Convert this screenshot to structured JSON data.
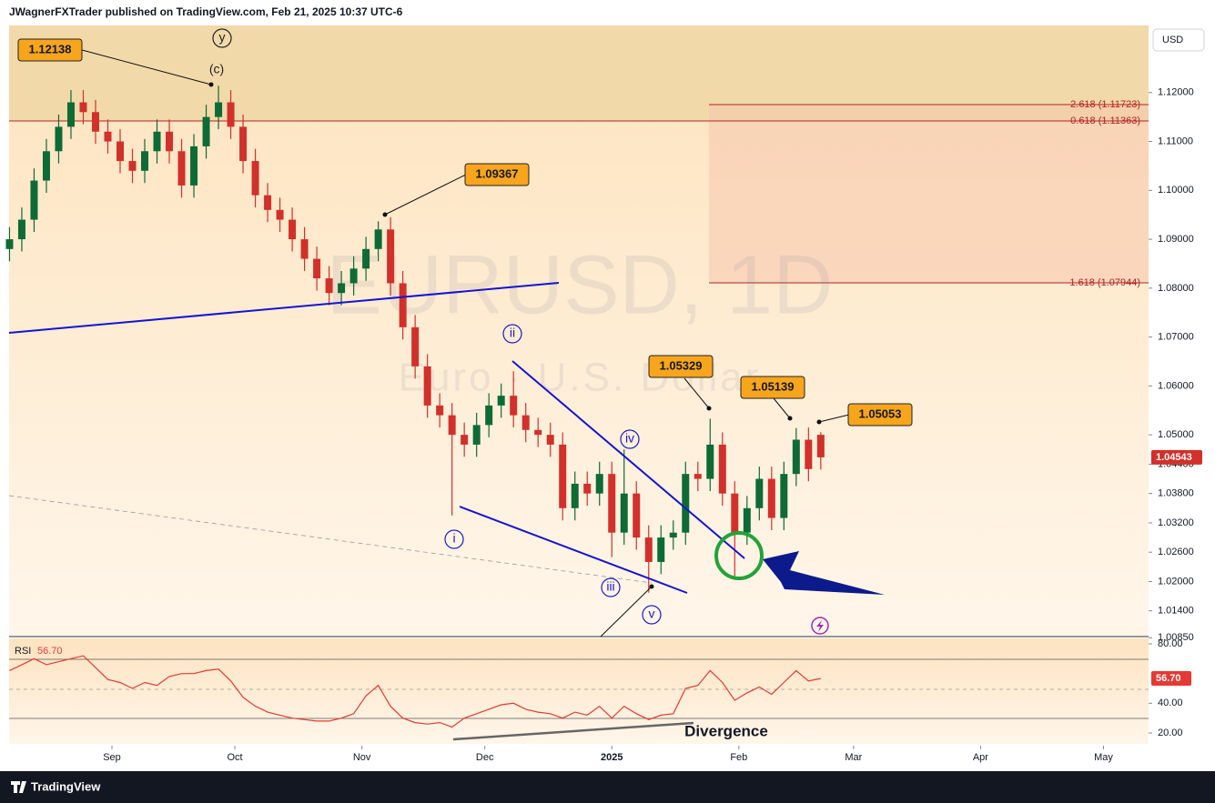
{
  "header": {
    "publisher": "JWagnerFXTrader published on TradingView.com, Feb 21, 2025 10:37 UTC-6",
    "currency_button": "USD"
  },
  "footer": {
    "brand": "TradingView"
  },
  "chart_data": {
    "type": "candlestick",
    "symbol_watermark": "EURUSD, 1D",
    "name_watermark": "Euro · U.S. Dollar",
    "up_color": "#0e6b35",
    "down_color": "#d1302b",
    "xlim": [
      -25.1,
      253.0
    ],
    "xticks": [
      {
        "value": 0,
        "label": "Sep"
      },
      {
        "value": 30,
        "label": "Oct"
      },
      {
        "value": 61,
        "label": "Nov"
      },
      {
        "value": 91,
        "label": "Dec"
      },
      {
        "value": 122,
        "label": "2025"
      },
      {
        "value": 153,
        "label": "Feb"
      },
      {
        "value": 181,
        "label": "Mar"
      },
      {
        "value": 212,
        "label": "Apr"
      },
      {
        "value": 242,
        "label": "May"
      }
    ],
    "ylim": [
      1.00874,
      1.13372
    ],
    "yticks": [
      {
        "value": 1.12,
        "label": "1.12000"
      },
      {
        "value": 1.11,
        "label": "1.11000"
      },
      {
        "value": 1.1,
        "label": "1.10000"
      },
      {
        "value": 1.09,
        "label": "1.09000"
      },
      {
        "value": 1.08,
        "label": "1.08000"
      },
      {
        "value": 1.07,
        "label": "1.07000"
      },
      {
        "value": 1.06,
        "label": "1.06000"
      },
      {
        "value": 1.05,
        "label": "1.05000"
      },
      {
        "value": 1.044,
        "label": "1.04400"
      },
      {
        "value": 1.038,
        "label": "1.03800"
      },
      {
        "value": 1.032,
        "label": "1.03200"
      },
      {
        "value": 1.026,
        "label": "1.02600"
      },
      {
        "value": 1.02,
        "label": "1.02000"
      },
      {
        "value": 1.014,
        "label": "1.01400"
      },
      {
        "value": 1.0085,
        "label": "1.00850"
      }
    ],
    "last_price_label": "1.04543",
    "x": [
      -25,
      -22,
      -19,
      -16,
      -13,
      -10,
      -7,
      -4,
      -1,
      2,
      5,
      8,
      11,
      14,
      17,
      20,
      23,
      26,
      29,
      32,
      35,
      38,
      41,
      44,
      47,
      50,
      53,
      56,
      59,
      62,
      65,
      68,
      71,
      74,
      77,
      80,
      83,
      86,
      89,
      92,
      95,
      98,
      101,
      104,
      107,
      110,
      113,
      116,
      119,
      122,
      125,
      128,
      131,
      134,
      137,
      140,
      143,
      146,
      149,
      152,
      155,
      158,
      161,
      164,
      167,
      170,
      173
    ],
    "open": [
      1.088,
      1.09,
      1.094,
      1.102,
      1.108,
      1.113,
      1.118,
      1.116,
      1.112,
      1.11,
      1.106,
      1.104,
      1.108,
      1.112,
      1.108,
      1.101,
      1.109,
      1.115,
      1.118,
      1.113,
      1.106,
      1.099,
      1.096,
      1.094,
      1.09,
      1.086,
      1.082,
      1.079,
      1.081,
      1.084,
      1.088,
      1.092,
      1.081,
      1.072,
      1.064,
      1.056,
      1.054,
      1.05,
      1.048,
      1.052,
      1.056,
      1.058,
      1.054,
      1.051,
      1.05,
      1.048,
      1.035,
      1.04,
      1.038,
      1.042,
      1.03,
      1.038,
      1.029,
      1.024,
      1.029,
      1.03,
      1.042,
      1.041,
      1.048,
      1.038,
      1.03,
      1.035,
      1.041,
      1.033,
      1.042,
      1.049,
      1.05
    ],
    "high": [
      1.0925,
      1.0965,
      1.1045,
      1.1105,
      1.1155,
      1.1205,
      1.1205,
      1.1185,
      1.1145,
      1.1125,
      1.1085,
      1.1105,
      1.1145,
      1.1145,
      1.1105,
      1.1115,
      1.1175,
      1.12138,
      1.1205,
      1.1155,
      1.1085,
      1.1015,
      1.0985,
      1.0965,
      1.0925,
      1.0885,
      1.0845,
      1.0835,
      1.0865,
      1.0905,
      1.09367,
      1.0945,
      1.0835,
      1.0745,
      1.0665,
      1.0585,
      1.0565,
      1.0525,
      1.0545,
      1.0585,
      1.0605,
      1.063,
      1.0565,
      1.0535,
      1.0525,
      1.0505,
      1.0425,
      1.0425,
      1.0445,
      1.0445,
      1.047,
      1.0405,
      1.0315,
      1.0315,
      1.0325,
      1.0445,
      1.0445,
      1.05329,
      1.0505,
      1.0405,
      1.0375,
      1.0435,
      1.0435,
      1.0445,
      1.05139,
      1.0515,
      1.05053
    ],
    "low": [
      1.0855,
      1.0875,
      1.0915,
      1.0995,
      1.1055,
      1.1105,
      1.1135,
      1.1095,
      1.1075,
      1.1035,
      1.1015,
      1.1015,
      1.1055,
      1.1055,
      1.0985,
      1.0985,
      1.1065,
      1.1125,
      1.1105,
      1.1035,
      1.0965,
      1.0935,
      1.0915,
      1.0875,
      1.0835,
      1.0795,
      1.0765,
      1.0765,
      1.0785,
      1.0815,
      1.0855,
      1.0785,
      1.0695,
      1.0615,
      1.0535,
      1.0515,
      1.0335,
      1.0455,
      1.0455,
      1.0495,
      1.0535,
      1.0515,
      1.0485,
      1.0475,
      1.0455,
      1.0325,
      1.0325,
      1.0355,
      1.0355,
      1.025,
      1.0275,
      1.0265,
      1.0177,
      1.0215,
      1.0265,
      1.0275,
      1.0385,
      1.0385,
      1.0355,
      1.021,
      1.0275,
      1.0325,
      1.0305,
      1.0305,
      1.0395,
      1.0405,
      1.0429
    ],
    "close": [
      1.09,
      1.094,
      1.102,
      1.108,
      1.113,
      1.118,
      1.116,
      1.112,
      1.11,
      1.106,
      1.104,
      1.108,
      1.112,
      1.108,
      1.101,
      1.109,
      1.115,
      1.118,
      1.113,
      1.106,
      1.099,
      1.096,
      1.094,
      1.09,
      1.086,
      1.082,
      1.079,
      1.081,
      1.084,
      1.088,
      1.092,
      1.081,
      1.072,
      1.064,
      1.056,
      1.054,
      1.05,
      1.048,
      1.052,
      1.056,
      1.058,
      1.054,
      1.051,
      1.05,
      1.048,
      1.035,
      1.04,
      1.038,
      1.042,
      1.03,
      1.038,
      1.029,
      1.024,
      1.029,
      1.03,
      1.042,
      1.041,
      1.048,
      1.038,
      1.03,
      1.035,
      1.041,
      1.033,
      1.042,
      1.049,
      1.043,
      1.0454
    ],
    "rsi": {
      "name": "RSI",
      "current_label": "56.70",
      "color": "#e53935",
      "ylim": [
        12.65,
        83.67
      ],
      "yticks": [
        {
          "value": 80,
          "label": "80.00"
        },
        {
          "value": 40,
          "label": "40.00"
        },
        {
          "value": 20,
          "label": "20.00"
        }
      ],
      "values": [
        62,
        66,
        70,
        66,
        68,
        70,
        72,
        64,
        56,
        54,
        50,
        54,
        52,
        58,
        60,
        60,
        62,
        63,
        55,
        44,
        38,
        34,
        32,
        30,
        29,
        28,
        28,
        30,
        33,
        45,
        52,
        38,
        30,
        27,
        26,
        27,
        24,
        30,
        33,
        36,
        39,
        40,
        36,
        34,
        33,
        30,
        34,
        32,
        38,
        30,
        38,
        33,
        29,
        32,
        33,
        50,
        52,
        62,
        54,
        42,
        47,
        51,
        46,
        54,
        62,
        55,
        56.7
      ]
    },
    "annotations": {
      "wave_labels": [
        "y",
        "(c)",
        "i",
        "ii",
        "iii",
        "iv",
        "v"
      ],
      "price_callouts": [
        "1.12138",
        "1.09367",
        "1.05329",
        "1.05139",
        "1.05053"
      ],
      "fib_levels": [
        "2.618 (1.11723)",
        "0.618 (1.11363)",
        "1.618 (1.07944)"
      ],
      "divergence": "Divergence"
    }
  }
}
